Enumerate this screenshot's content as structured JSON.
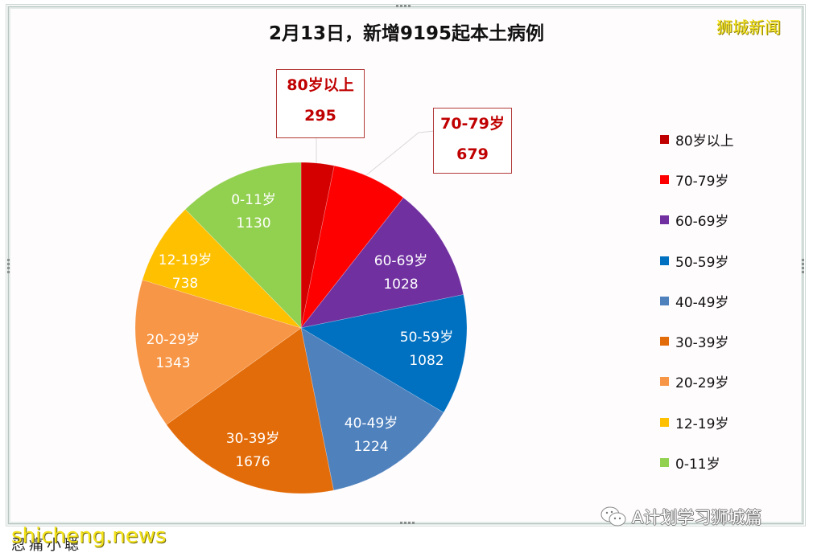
{
  "chart_data": {
    "type": "pie",
    "title": "2月13日，新增9195起本土病例",
    "total": 9195,
    "start_angle_deg": 90,
    "direction": "clockwise",
    "categories": [
      "80岁以上",
      "70-79岁",
      "60-69岁",
      "50-59岁",
      "40-49岁",
      "30-39岁",
      "20-29岁",
      "12-19岁",
      "0-11岁"
    ],
    "values": [
      295,
      679,
      1028,
      1082,
      1224,
      1676,
      1343,
      738,
      1130
    ],
    "colors": [
      "#d40000",
      "#ff0000",
      "#7030a0",
      "#0070c0",
      "#4f81bd",
      "#e36c0a",
      "#f79646",
      "#ffc000",
      "#92d050"
    ],
    "data_labels": [
      {
        "label": "80岁以上",
        "value": "295",
        "style": "callout"
      },
      {
        "label": "70-79岁",
        "value": "679",
        "style": "callout"
      },
      {
        "label": "60-69岁",
        "value": "1028",
        "style": "inside"
      },
      {
        "label": "50-59岁",
        "value": "1082",
        "style": "inside"
      },
      {
        "label": "40-49岁",
        "value": "1224",
        "style": "inside"
      },
      {
        "label": "30-39岁",
        "value": "1676",
        "style": "inside"
      },
      {
        "label": "20-29岁",
        "value": "1343",
        "style": "inside"
      },
      {
        "label": "12-19岁",
        "value": "738",
        "style": "inside"
      },
      {
        "label": "0-11岁",
        "value": "1130",
        "style": "inside"
      }
    ],
    "legend": {
      "position": "right",
      "entries": [
        "80岁以上",
        "70-79岁",
        "60-69岁",
        "50-59岁",
        "40-49岁",
        "30-39岁",
        "20-29岁",
        "12-19岁",
        "0-11岁"
      ]
    }
  },
  "header": {
    "title": "2月13日，新增9195起本土病例",
    "brand": "狮城新闻"
  },
  "callouts": [
    {
      "label": "80岁以上",
      "value": "295"
    },
    {
      "label": "70-79岁",
      "value": "679"
    }
  ],
  "inside_labels": [
    {
      "label": "60-69岁",
      "value": "1028"
    },
    {
      "label": "50-59岁",
      "value": "1082"
    },
    {
      "label": "40-49岁",
      "value": "1224"
    },
    {
      "label": "30-39岁",
      "value": "1676"
    },
    {
      "label": "20-29岁",
      "value": "1343"
    },
    {
      "label": "12-19岁",
      "value": "738"
    },
    {
      "label": "0-11岁",
      "value": "1130"
    }
  ],
  "legend": {
    "items": [
      {
        "label": "80岁以上",
        "color": "#c00000"
      },
      {
        "label": "70-79岁",
        "color": "#ff0000"
      },
      {
        "label": "60-69岁",
        "color": "#7030a0"
      },
      {
        "label": "50-59岁",
        "color": "#0070c0"
      },
      {
        "label": "40-49岁",
        "color": "#4f81bd"
      },
      {
        "label": "30-39岁",
        "color": "#e36c0a"
      },
      {
        "label": "20-29岁",
        "color": "#f79646"
      },
      {
        "label": "12-19岁",
        "color": "#ffc000"
      },
      {
        "label": "0-11岁",
        "color": "#92d050"
      }
    ]
  },
  "footer": {
    "watermark": "shicheng.news",
    "under_text": "忍痛小聪",
    "wechat_account": "A计划学习狮城篇"
  }
}
